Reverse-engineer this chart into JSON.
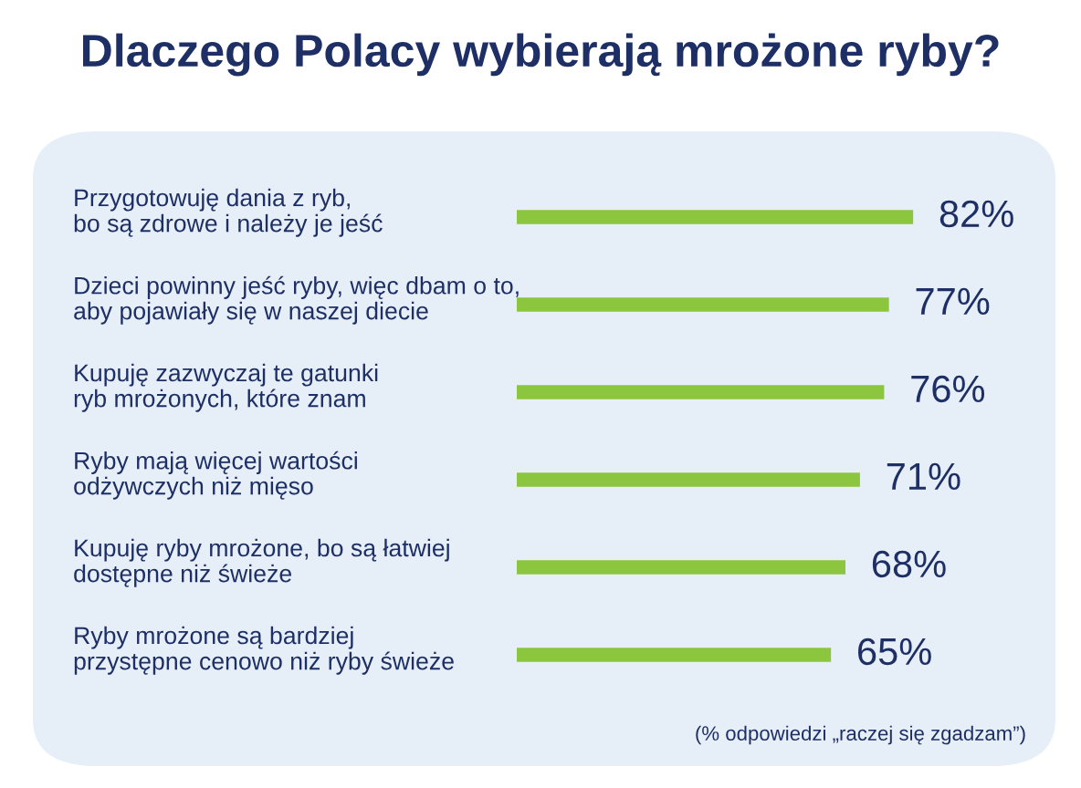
{
  "chart_data": {
    "type": "bar",
    "orientation": "horizontal",
    "title": "Dlaczego Polacy wybierają mrożone ryby?",
    "categories": [
      "Przygotowuję dania z ryb,\nbo są zdrowe i należy je jeść",
      "Dzieci powinny jeść ryby, więc dbam o to,\naby pojawiały się w naszej diecie",
      "Kupuję zazwyczaj te gatunki\nryb mrożonych, które znam",
      "Ryby mają więcej wartości\nodżywczych niż mięso",
      "Kupuję ryby mrożone, bo są łatwiej\ndostępne niż świeże",
      "Ryby mrożone są bardziej\nprzystępne cenowo niż ryby świeże"
    ],
    "values": [
      82,
      77,
      76,
      71,
      68,
      65
    ],
    "value_labels": [
      "82%",
      "77%",
      "76%",
      "71%",
      "68%",
      "65%"
    ],
    "color": "#8cc63e",
    "annotations": [
      "(% odpowiedzi „raczej się zgadzam”)"
    ]
  }
}
